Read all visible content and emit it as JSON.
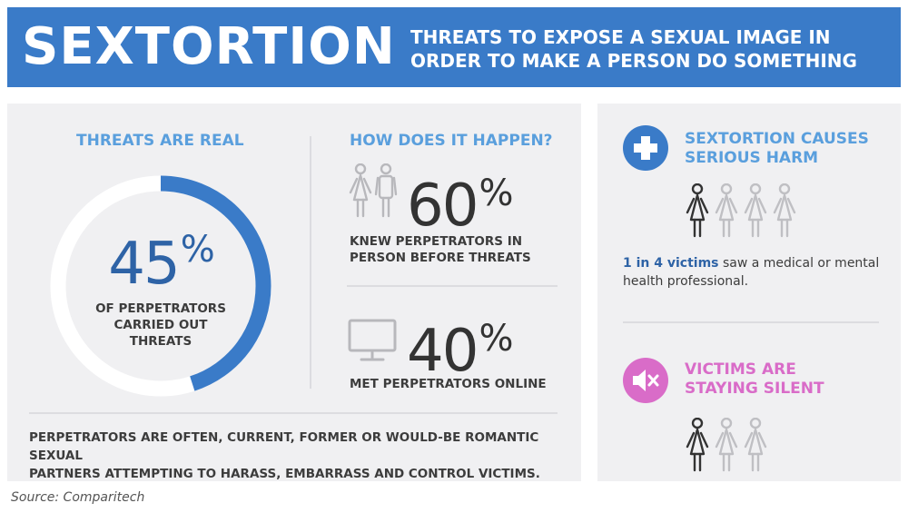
{
  "header": {
    "title": "SEXTORTION",
    "subtitle_line1": "THREATS TO EXPOSE A SEXUAL IMAGE IN",
    "subtitle_line2": "ORDER TO MAKE A PERSON DO SOMETHING"
  },
  "threats": {
    "heading": "THREATS ARE REAL",
    "value": "45",
    "unit": "%",
    "fill_fraction": 0.45,
    "label_line1": "OF PERPETRATORS",
    "label_line2": "CARRIED OUT",
    "label_line3": "THREATS"
  },
  "how": {
    "heading": "HOW DOES IT HAPPEN?",
    "stat1": {
      "value": "60",
      "unit": "%",
      "label_line1": "KNEW PERPETRATORS IN",
      "label_line2": "PERSON BEFORE THREATS",
      "icon": "couple-icon"
    },
    "stat2": {
      "value": "40",
      "unit": "%",
      "label": "MET PERPETRATORS ONLINE",
      "icon": "monitor-icon"
    }
  },
  "footnote": {
    "line1": "PERPETRATORS ARE OFTEN, CURRENT, FORMER OR WOULD-BE ROMANTIC SEXUAL",
    "line2": "PARTNERS ATTEMPTING TO HARASS, EMBARRASS AND CONTROL VICTIMS."
  },
  "harm": {
    "heading_line1": "SEXTORTION CAUSES",
    "heading_line2": "SERIOUS HARM",
    "icon": "medical-cross-icon",
    "stat_bold": "1 in 4 victims",
    "stat_rest": " saw a medical or mental",
    "stat_line2": "health professional.",
    "highlighted": 1,
    "total": 4
  },
  "silent": {
    "heading_line1": "VICTIMS ARE",
    "heading_line2": "STAYING SILENT",
    "icon": "muted-speaker-icon",
    "highlighted": 1,
    "total": 3
  },
  "source": "Source: Comparitech",
  "colors": {
    "banner": "#3a7bc8",
    "accent_blue": "#5a9fdd",
    "dark_blue": "#2e63a6",
    "pink": "#d96cc8",
    "panel": "#f0f0f2"
  }
}
